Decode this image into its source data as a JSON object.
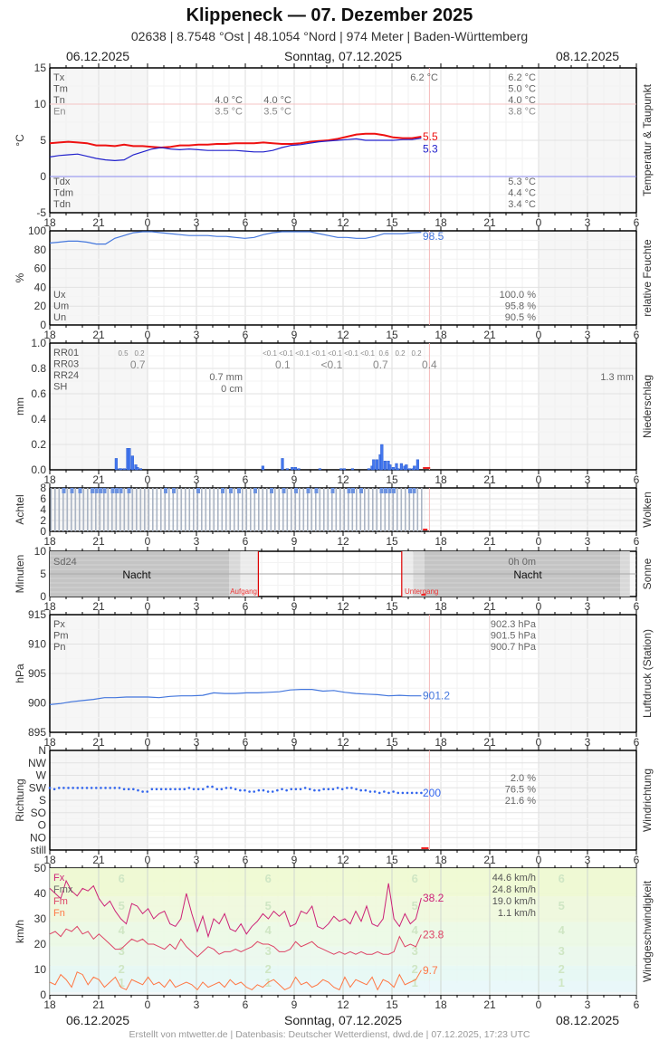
{
  "header": {
    "title": "Klippeneck  —  07. Dezember 2025",
    "subtitle": "02638  |  8.7548 °Ost  |  48.1054 °Nord  |  974 Meter  |  Baden-Württemberg",
    "date_left": "06.12.2025",
    "date_center": "Sonntag, 07.12.2025",
    "date_right": "08.12.2025"
  },
  "footer": {
    "credit": "Erstellt von mtwetter.de | Datenbasis: Deutscher Wetterdienst, dwd.de | 07.12.2025, 17:23 UTC"
  },
  "x_axis": {
    "tick_labels": [
      "18",
      "21",
      "0",
      "3",
      "6",
      "9",
      "12",
      "15",
      "18",
      "21",
      "0",
      "3",
      "6"
    ],
    "hours_span": 36,
    "now_hour_offset": 23.3
  },
  "colors": {
    "temp": "#ee1111",
    "dewpoint": "#2222cc",
    "humidity": "#4477dd",
    "precip": "#4477ee",
    "pressure": "#4477dd",
    "winddir": "#3366ee",
    "gust": "#cc2277",
    "wind_mean": "#dd4466",
    "wind_min": "#ff7744",
    "now_line": "#f4b8b8",
    "grid": "#dddddd",
    "night_bg": "#f6f6f6"
  },
  "chart_data": [
    {
      "type": "line",
      "name": "temperature",
      "side_label": "Temperatur & Taupunkt",
      "ylabel": "°C",
      "ylim": [
        -5,
        15
      ],
      "yticks": [
        "15",
        "10",
        "5",
        "0",
        "-5"
      ],
      "stats_left_labels": [
        "Tx",
        "Tm",
        "Tn",
        "En"
      ],
      "stats_day1": [
        "",
        "",
        "4.0 °C",
        "3.5 °C"
      ],
      "stats_day1b": [
        "",
        "",
        "4.0 °C",
        "3.5 °C"
      ],
      "stats_day2_top": "6.2 °C",
      "stats_day2": [
        "6.2 °C",
        "5.0 °C",
        "4.0 °C",
        "3.8 °C"
      ],
      "dew_labels": [
        "Tdx",
        "Tdm",
        "Tdn"
      ],
      "dew_stats": [
        "5.3 °C",
        "4.4 °C",
        "3.4 °C"
      ],
      "series": [
        {
          "name": "Temperatur",
          "last": "5.5",
          "values": [
            4.6,
            4.7,
            4.8,
            4.7,
            4.6,
            4.3,
            4.3,
            4.2,
            4.4,
            4.2,
            4.2,
            4.1,
            4.0,
            4.1,
            4.3,
            4.3,
            4.4,
            4.4,
            4.5,
            4.5,
            4.6,
            4.6,
            4.6,
            4.7,
            4.6,
            4.5,
            4.5,
            4.6,
            4.8,
            4.9,
            5.0,
            5.2,
            5.5,
            5.8,
            5.9,
            5.9,
            5.7,
            5.4,
            5.3,
            5.3,
            5.5
          ]
        },
        {
          "name": "Taupunkt",
          "last": "5.3",
          "values": [
            2.7,
            2.9,
            3.0,
            3.1,
            2.8,
            2.5,
            2.3,
            2.2,
            2.3,
            3.0,
            3.4,
            3.8,
            4.0,
            3.8,
            3.7,
            3.8,
            3.7,
            3.6,
            3.6,
            3.6,
            3.6,
            3.5,
            3.4,
            3.4,
            3.6,
            4.0,
            4.3,
            4.4,
            4.6,
            4.8,
            4.9,
            5.0,
            5.1,
            5.2,
            5.0,
            5.0,
            5.0,
            5.0,
            5.1,
            5.1,
            5.3
          ]
        }
      ]
    },
    {
      "type": "line",
      "name": "humidity",
      "side_label": "relative Feuchte",
      "ylabel": "%",
      "ylim": [
        0,
        100
      ],
      "yticks": [
        "100",
        "80",
        "60",
        "40",
        "20",
        "0"
      ],
      "stats_left_labels": [
        "Ux",
        "Um",
        "Un"
      ],
      "stats_day2": [
        "100.0 %",
        "95.8 %",
        "90.5 %"
      ],
      "last": "98.5",
      "values": [
        87,
        88,
        89,
        89,
        88,
        86,
        86,
        92,
        95,
        98,
        99,
        99,
        98,
        97,
        96,
        95,
        95,
        95,
        94,
        94,
        93,
        92,
        93,
        96,
        98,
        99,
        99,
        99,
        99,
        97,
        95,
        93,
        93,
        92,
        92,
        94,
        97,
        97,
        97,
        98,
        98.5
      ]
    },
    {
      "type": "bar",
      "name": "precipitation",
      "side_label": "Niederschlag",
      "ylabel": "mm",
      "ylim": [
        0,
        1.0
      ],
      "yticks": [
        "1.0",
        "0.8",
        "0.6",
        "0.4",
        "0.2",
        "0.0"
      ],
      "stats_left_labels": [
        "RR01",
        "RR03",
        "RR24",
        "SH"
      ],
      "rr01_labels": [
        {
          "h": 4.5,
          "t": "0.5"
        },
        {
          "h": 5.5,
          "t": "0.2"
        },
        {
          "h": 13.5,
          "t": "<0.1"
        },
        {
          "h": 14.5,
          "t": "<0.1"
        },
        {
          "h": 15.5,
          "t": "<0.1"
        },
        {
          "h": 16.5,
          "t": "<0.1"
        },
        {
          "h": 17.5,
          "t": "<0.1"
        },
        {
          "h": 18.5,
          "t": "<0.1"
        },
        {
          "h": 19.5,
          "t": "<0.1"
        },
        {
          "h": 20.5,
          "t": "0.6"
        },
        {
          "h": 21.5,
          "t": "0.2"
        },
        {
          "h": 22.5,
          "t": "0.2"
        }
      ],
      "rr03_labels": [
        {
          "h": 5.4,
          "t": "0.7"
        },
        {
          "h": 14.3,
          "t": "0.1"
        },
        {
          "h": 17.3,
          "t": "<0.1"
        },
        {
          "h": 20.3,
          "t": "0.7"
        },
        {
          "h": 23.3,
          "t": "0.4"
        }
      ],
      "rr24_day1": "0.7 mm",
      "sh_day1": "0 cm",
      "rr24_day2": "1.3 mm",
      "bars_10min": [
        {
          "h": 4.0,
          "v": 0.09
        },
        {
          "h": 4.2,
          "v": 0.01
        },
        {
          "h": 4.3,
          "v": 0.01
        },
        {
          "h": 4.5,
          "v": 0.01
        },
        {
          "h": 4.7,
          "v": 0.17
        },
        {
          "h": 4.8,
          "v": 0.17
        },
        {
          "h": 5.0,
          "v": 0.11
        },
        {
          "h": 5.2,
          "v": 0.04
        },
        {
          "h": 5.3,
          "v": 0.02
        },
        {
          "h": 5.5,
          "v": 0.01
        },
        {
          "h": 13.0,
          "v": 0.03
        },
        {
          "h": 14.2,
          "v": 0.09
        },
        {
          "h": 14.5,
          "v": 0.01
        },
        {
          "h": 14.8,
          "v": 0.02
        },
        {
          "h": 15.0,
          "v": 0.02
        },
        {
          "h": 15.2,
          "v": 0.01
        },
        {
          "h": 16.5,
          "v": 0.01
        },
        {
          "h": 17.8,
          "v": 0.01
        },
        {
          "h": 18.0,
          "v": 0.01
        },
        {
          "h": 18.5,
          "v": 0.01
        },
        {
          "h": 19.5,
          "v": 0.01
        },
        {
          "h": 19.7,
          "v": 0.03
        },
        {
          "h": 19.8,
          "v": 0.08
        },
        {
          "h": 20.0,
          "v": 0.08
        },
        {
          "h": 20.2,
          "v": 0.12
        },
        {
          "h": 20.3,
          "v": 0.2
        },
        {
          "h": 20.5,
          "v": 0.07
        },
        {
          "h": 20.7,
          "v": 0.07
        },
        {
          "h": 20.8,
          "v": 0.04
        },
        {
          "h": 21.0,
          "v": 0.02
        },
        {
          "h": 21.2,
          "v": 0.05
        },
        {
          "h": 21.3,
          "v": 0.01
        },
        {
          "h": 21.5,
          "v": 0.05
        },
        {
          "h": 21.7,
          "v": 0.03
        },
        {
          "h": 21.8,
          "v": 0.04
        },
        {
          "h": 22.0,
          "v": 0.01
        },
        {
          "h": 22.2,
          "v": 0.01
        },
        {
          "h": 22.3,
          "v": 0.03
        },
        {
          "h": 22.5,
          "v": 0.08
        }
      ]
    },
    {
      "type": "bar",
      "name": "clouds",
      "side_label": "Wolken",
      "ylabel": "Achtel",
      "ylim": [
        0,
        8
      ],
      "yticks": [
        "8",
        "6",
        "4",
        "2",
        "0"
      ],
      "value_all": 8,
      "highlight_hours": [
        0.75,
        1.25,
        1.75,
        2.5,
        2.75,
        3.0,
        3.25,
        3.75,
        4.0,
        4.25,
        4.75,
        7.0,
        7.5,
        9.0,
        10.5,
        11.0,
        11.5,
        12.5,
        13.5,
        14.25,
        15.0,
        15.75,
        16.25,
        17.25,
        18.25,
        18.5,
        19.0,
        20.25,
        20.5,
        20.75,
        21.0,
        22.0,
        22.25
      ]
    },
    {
      "type": "area",
      "name": "sunshine",
      "side_label": "Sonne",
      "ylabel": "Minuten",
      "ylim": [
        0,
        10
      ],
      "yticks": [
        "10",
        "5",
        "0"
      ],
      "stat_label": "Sd24",
      "stat_value": "0h 0m",
      "night_label": "Nacht",
      "sunrise_label": "Aufgang",
      "sunset_label": "Untergang",
      "sunrise_h": 12.8,
      "sunset_h": 21.6
    },
    {
      "type": "line",
      "name": "pressure",
      "side_label": "Luftdruck (Station)",
      "ylabel": "hPa",
      "ylim": [
        895,
        915
      ],
      "yticks": [
        "915",
        "910",
        "905",
        "900",
        "895"
      ],
      "stats_left_labels": [
        "Px",
        "Pm",
        "Pn"
      ],
      "stats_day2": [
        "902.3 hPa",
        "901.5 hPa",
        "900.7 hPa"
      ],
      "last": "901.2",
      "values": [
        899.7,
        899.9,
        900.2,
        900.4,
        900.6,
        900.9,
        900.9,
        901.0,
        901.0,
        901.0,
        900.9,
        901.1,
        901.2,
        901.2,
        901.3,
        901.7,
        901.6,
        901.6,
        901.7,
        901.7,
        901.8,
        901.9,
        902.2,
        902.3,
        902.3,
        902.0,
        902.1,
        901.8,
        901.6,
        901.5,
        901.4,
        901.2,
        901.3,
        901.2,
        901.2
      ]
    },
    {
      "type": "scatter",
      "name": "wind_direction",
      "side_label": "Windrichtung",
      "ylabel": "Richtung",
      "yticks": [
        "N",
        "NW",
        "W",
        "SW",
        "S",
        "SO",
        "O",
        "NO",
        "still"
      ],
      "stats_day2": [
        "2.0 %",
        "76.5 %",
        "21.6 %"
      ],
      "last": "200",
      "values": [
        230,
        225,
        230,
        230,
        230,
        230,
        230,
        230,
        230,
        230,
        230,
        230,
        230,
        230,
        230,
        230,
        225,
        225,
        225,
        220,
        215,
        215,
        225,
        225,
        225,
        225,
        225,
        225,
        225,
        225,
        230,
        225,
        225,
        225,
        235,
        235,
        225,
        225,
        230,
        230,
        225,
        220,
        220,
        215,
        215,
        220,
        220,
        215,
        215,
        220,
        225,
        220,
        225,
        225,
        225,
        230,
        225,
        220,
        220,
        225,
        225,
        225,
        230,
        225,
        230,
        230,
        225,
        220,
        220,
        215,
        215,
        210,
        215,
        210,
        215,
        210,
        210,
        210,
        210,
        210,
        210
      ]
    },
    {
      "type": "line",
      "name": "wind_speed",
      "side_label": "Windgeschwindigkeit",
      "ylabel": "km/h",
      "ylim": [
        0,
        50
      ],
      "yticks": [
        "50",
        "40",
        "30",
        "20",
        "10",
        "0"
      ],
      "legend": [
        "Fx",
        "Fmx",
        "Fm",
        "Fn"
      ],
      "stats_day2": [
        "44.6 km/h",
        "24.8 km/h",
        "19.0 km/h",
        "1.1 km/h"
      ],
      "beaufort_labels": [
        "6",
        "5",
        "4",
        "3",
        "2",
        "1"
      ],
      "series": [
        {
          "name": "Fx",
          "last": "38.2",
          "values": [
            42,
            40,
            38,
            45,
            41,
            39,
            42,
            41,
            43,
            38,
            35,
            37,
            33,
            30,
            28,
            36,
            35,
            32,
            34,
            30,
            32,
            33,
            28,
            27,
            30,
            40,
            32,
            25,
            31,
            23,
            30,
            28,
            32,
            26,
            25,
            28,
            24,
            27,
            29,
            32,
            30,
            33,
            31,
            33,
            27,
            28,
            33,
            32,
            35,
            27,
            26,
            28,
            31,
            29,
            30,
            28,
            33,
            29,
            35,
            28,
            27,
            30,
            44,
            30,
            27,
            32,
            28,
            30,
            38.2
          ]
        },
        {
          "name": "Fm",
          "last": "23.8",
          "values": [
            24,
            25,
            23,
            26,
            25,
            27,
            24,
            25,
            22,
            24,
            22,
            20,
            18,
            18,
            20,
            22,
            21,
            22,
            20,
            20,
            19,
            18,
            20,
            18,
            22,
            19,
            17,
            15,
            17,
            19,
            18,
            16,
            17,
            17,
            18,
            17,
            18,
            19,
            21,
            20,
            20,
            19,
            17,
            17,
            18,
            21,
            19,
            20,
            21,
            19,
            18,
            17,
            16,
            17,
            16,
            17,
            16,
            17,
            16,
            16,
            17,
            16,
            16,
            17,
            23,
            19,
            20,
            19,
            23.8
          ]
        },
        {
          "name": "Fn",
          "last": "9.7",
          "values": [
            5,
            4,
            8,
            6,
            3,
            9,
            8,
            4,
            7,
            6,
            3,
            5,
            7,
            3,
            2,
            6,
            5,
            4,
            7,
            4,
            5,
            3,
            6,
            3,
            4,
            5,
            4,
            2,
            5,
            3,
            4,
            5,
            3,
            6,
            4,
            5,
            3,
            2,
            4,
            3,
            5,
            6,
            4,
            2,
            3,
            7,
            4,
            5,
            3,
            4,
            6,
            5,
            3,
            2,
            7,
            3,
            6,
            5,
            4,
            7,
            2,
            6,
            5,
            3,
            8,
            4,
            5,
            6,
            9.7
          ]
        }
      ]
    }
  ]
}
